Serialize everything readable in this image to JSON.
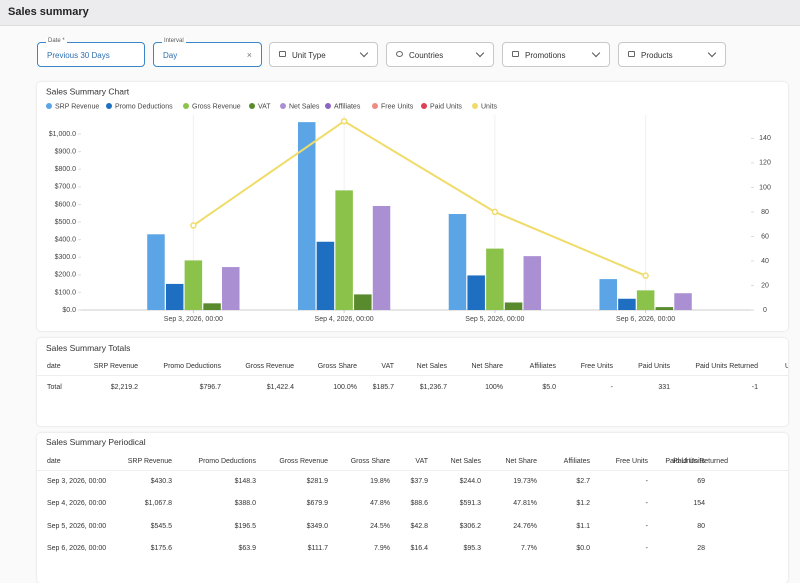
{
  "header": {
    "title": "Sales summary"
  },
  "filters": {
    "date": {
      "label": "Date *",
      "value": "Previous 30 Days"
    },
    "interval": {
      "label": "Interval",
      "value": "Day"
    },
    "dropdowns": [
      "Unit Type",
      "Countries",
      "Promotions",
      "Products"
    ]
  },
  "chart_data": {
    "type": "bar",
    "title": "Sales Summary Chart",
    "categories": [
      "Sep 3, 2026, 00:00",
      "Sep 4, 2026, 00:00",
      "Sep 5, 2026, 00:00",
      "Sep 6, 2026, 00:00"
    ],
    "series": [
      {
        "name": "SRP Revenue",
        "color": "#5ba4e5",
        "values": [
          430.3,
          1067.8,
          545.5,
          175.6
        ]
      },
      {
        "name": "Promo Deductions",
        "color": "#1e6fc1",
        "values": [
          148.3,
          388.0,
          196.5,
          63.9
        ]
      },
      {
        "name": "Gross Revenue",
        "color": "#8bc34a",
        "values": [
          281.9,
          679.9,
          349.0,
          111.7
        ]
      },
      {
        "name": "VAT",
        "color": "#5a8a2e",
        "values": [
          37.9,
          88.6,
          42.8,
          16.4
        ]
      },
      {
        "name": "Net Sales",
        "color": "#ab8fd3",
        "values": [
          244.0,
          591.3,
          306.2,
          95.3
        ]
      },
      {
        "name": "Affiliates",
        "color": "#8e63c2"
      },
      {
        "name": "Free Units",
        "color": "#ef8a80"
      },
      {
        "name": "Paid Units",
        "color": "#e04055"
      },
      {
        "name": "Units",
        "color": "#efdc6a",
        "type": "line",
        "axis": "y2",
        "values": [
          69,
          154,
          80,
          28
        ]
      }
    ],
    "ylim": [
      0,
      1080
    ],
    "yticks": [
      {
        "value": 0,
        "label": "$0.0"
      },
      {
        "value": 100,
        "label": "$100.0"
      },
      {
        "value": 200,
        "label": "$200.0"
      },
      {
        "value": 300,
        "label": "$300.0"
      },
      {
        "value": 400,
        "label": "$400.0"
      },
      {
        "value": 500,
        "label": "$500.0"
      },
      {
        "value": 600,
        "label": "$600.0"
      },
      {
        "value": 700,
        "label": "$700.0"
      },
      {
        "value": 800,
        "label": "$800.0"
      },
      {
        "value": 900,
        "label": "$900.0"
      },
      {
        "value": 1000,
        "label": "$1,000.0"
      }
    ],
    "y2lim": [
      0,
      155
    ],
    "y2ticks": [
      0,
      20,
      40,
      60,
      80,
      100,
      120,
      140
    ]
  },
  "totals": {
    "title": "Sales Summary Totals",
    "columns": [
      "date",
      "SRP Revenue",
      "Promo Deductions",
      "Gross Revenue",
      "Gross Share",
      "VAT",
      "Net Sales",
      "Net Share",
      "Affiliates",
      "Free Units",
      "Paid Units",
      "Paid Units Returned",
      "Units"
    ],
    "rows": [
      [
        "Total",
        "$2,219.2",
        "$796.7",
        "$1,422.4",
        "100.0%",
        "$185.7",
        "$1,236.7",
        "100%",
        "$5.0",
        "-",
        "331",
        "-1"
      ]
    ]
  },
  "periodical": {
    "title": "Sales Summary Periodical",
    "columns": [
      "date",
      "SRP Revenue",
      "Promo Deductions",
      "Gross Revenue",
      "Gross Share",
      "VAT",
      "Net Sales",
      "Net Share",
      "Affiliates",
      "Free Units",
      "Paid Units",
      "Paid Units Returned"
    ],
    "rows": [
      [
        "Sep 3, 2026, 00:00",
        "$430.3",
        "$148.3",
        "$281.9",
        "19.8%",
        "$37.9",
        "$244.0",
        "19.73%",
        "$2.7",
        "-",
        "69"
      ],
      [
        "Sep 4, 2026, 00:00",
        "$1,067.8",
        "$388.0",
        "$679.9",
        "47.8%",
        "$88.6",
        "$591.3",
        "47.81%",
        "$1.2",
        "-",
        "154"
      ],
      [
        "Sep 5, 2026, 00:00",
        "$545.5",
        "$196.5",
        "$349.0",
        "24.5%",
        "$42.8",
        "$306.2",
        "24.76%",
        "$1.1",
        "-",
        "80"
      ],
      [
        "Sep 6, 2026, 00:00",
        "$175.6",
        "$63.9",
        "$111.7",
        "7.9%",
        "$16.4",
        "$95.3",
        "7.7%",
        "$0.0",
        "-",
        "28"
      ]
    ]
  }
}
